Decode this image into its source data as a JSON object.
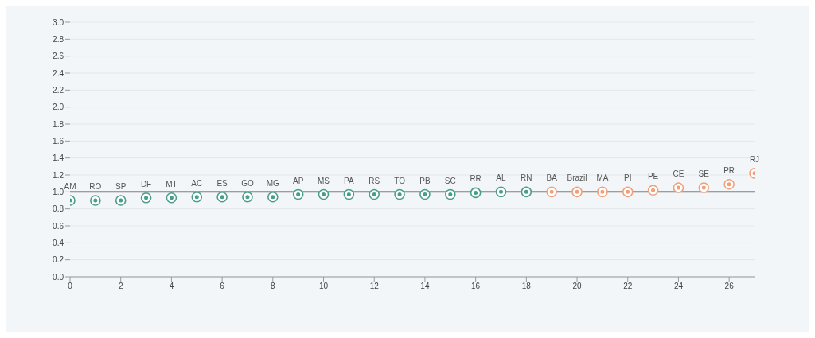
{
  "chart_data": {
    "type": "scatter",
    "series": [
      {
        "color": "#4a9d8a",
        "x": [
          0,
          1,
          2,
          3,
          4,
          5,
          6,
          7,
          8,
          9,
          10,
          11,
          12,
          13,
          14,
          15,
          16,
          17,
          18
        ],
        "values": [
          0.9,
          0.9,
          0.9,
          0.93,
          0.93,
          0.94,
          0.94,
          0.94,
          0.94,
          0.97,
          0.97,
          0.97,
          0.97,
          0.97,
          0.97,
          0.97,
          0.99,
          1.0,
          1.0
        ]
      },
      {
        "color": "#f0a07a",
        "x": [
          19,
          20,
          21,
          22,
          23,
          24,
          25,
          26,
          27
        ],
        "values": [
          1.0,
          1.0,
          1.0,
          1.0,
          1.02,
          1.05,
          1.05,
          1.09,
          1.22
        ]
      }
    ],
    "annotations": [
      {
        "text": "AM",
        "x": 0,
        "y": 0.9
      },
      {
        "text": "RO",
        "x": 1,
        "y": 0.9
      },
      {
        "text": "SP",
        "x": 2,
        "y": 0.9
      },
      {
        "text": "DF",
        "x": 3,
        "y": 0.93
      },
      {
        "text": "MT",
        "x": 4,
        "y": 0.93
      },
      {
        "text": "AC",
        "x": 5,
        "y": 0.94
      },
      {
        "text": "ES",
        "x": 6,
        "y": 0.94
      },
      {
        "text": "GO",
        "x": 7,
        "y": 0.94
      },
      {
        "text": "MG",
        "x": 8,
        "y": 0.94
      },
      {
        "text": "AP",
        "x": 9,
        "y": 0.97
      },
      {
        "text": "MS",
        "x": 10,
        "y": 0.97
      },
      {
        "text": "PA",
        "x": 11,
        "y": 0.97
      },
      {
        "text": "RS",
        "x": 12,
        "y": 0.97
      },
      {
        "text": "TO",
        "x": 13,
        "y": 0.97
      },
      {
        "text": "PB",
        "x": 14,
        "y": 0.97
      },
      {
        "text": "SC",
        "x": 15,
        "y": 0.97
      },
      {
        "text": "RR",
        "x": 16,
        "y": 0.99
      },
      {
        "text": "AL",
        "x": 17,
        "y": 1.0
      },
      {
        "text": "RN",
        "x": 18,
        "y": 1.0
      },
      {
        "text": "BA",
        "x": 19,
        "y": 1.0
      },
      {
        "text": "Brazil",
        "x": 20,
        "y": 1.0
      },
      {
        "text": "MA",
        "x": 21,
        "y": 1.0
      },
      {
        "text": "PI",
        "x": 22,
        "y": 1.0
      },
      {
        "text": "PE",
        "x": 23,
        "y": 1.02
      },
      {
        "text": "CE",
        "x": 24,
        "y": 1.05
      },
      {
        "text": "SE",
        "x": 25,
        "y": 1.05
      },
      {
        "text": "PR",
        "x": 26,
        "y": 1.09
      },
      {
        "text": "RJ",
        "x": 27,
        "y": 1.22
      }
    ],
    "xlim": [
      0,
      27
    ],
    "xticks": [
      0,
      2,
      4,
      6,
      8,
      10,
      12,
      14,
      16,
      18,
      20,
      22,
      24,
      26
    ],
    "ylim": [
      0,
      3
    ],
    "yticks": [
      {
        "value": 0,
        "label": "0.0"
      },
      0.2,
      0.4,
      0.6,
      0.8,
      {
        "value": 1,
        "label": "1.0"
      },
      1.2,
      1.4,
      1.6,
      1.8,
      {
        "value": 2,
        "label": "2.0"
      },
      2.2,
      2.4,
      2.6,
      2.8,
      {
        "value": 3,
        "label": "3.0"
      }
    ],
    "ref_lines": [
      {
        "axis": "y",
        "value": 1,
        "color": "#808080"
      }
    ],
    "grid": "y",
    "legend": false,
    "marker": "circle"
  }
}
